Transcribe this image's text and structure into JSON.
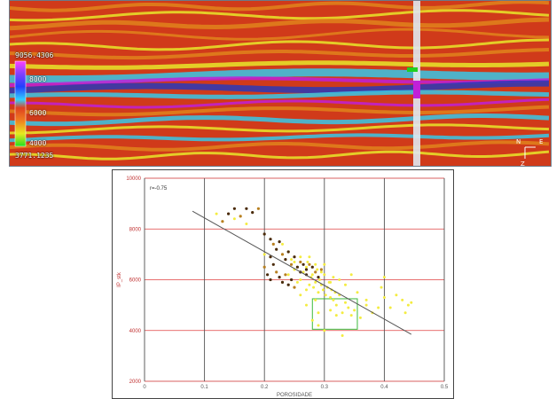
{
  "seismic_section": {
    "colorbar": {
      "max_label": "9056.4306",
      "min_label": "3771.1235",
      "ticks": [
        "8000",
        "6000",
        "4000"
      ],
      "tick_values": [
        8000,
        6000,
        4000
      ],
      "range": [
        3771.1235,
        9056.4306
      ]
    },
    "orientation_axes": {
      "north": "N",
      "east": "E",
      "z": "Z"
    },
    "icons": [
      "well-trace-icon",
      "axis-triad-icon"
    ],
    "colors": {
      "red": "#d03a1a",
      "orange": "#e0841c",
      "yellow": "#e8e82a",
      "cyan": "#38c8e8",
      "blue": "#2a3ab8",
      "magenta": "#c020d8"
    }
  },
  "crossplot": {
    "annotation": "r=-0.75",
    "ylabel": "IP_stk",
    "xlabel": "POROSIDADE",
    "colors": {
      "grid_h": "#e04040",
      "grid_v": "#555555",
      "trend": "#555555",
      "box": "#3cba3c",
      "points_light": "#f4ec40",
      "points_dark": "#4a2a08",
      "points_mid": "#b88020"
    }
  },
  "chart_data": {
    "type": "scatter",
    "title": "",
    "xlabel": "POROSIDADE",
    "ylabel": "IP_stk",
    "xlim": [
      0,
      0.5
    ],
    "ylim": [
      2000,
      10000
    ],
    "x_ticks": [
      "0",
      "0.1",
      "0.2",
      "0.3",
      "0.4",
      "0.5"
    ],
    "y_ticks": [
      "2000",
      "4000",
      "6000",
      "8000",
      "10000"
    ],
    "grid": true,
    "annotations": [
      "r=-0.75"
    ],
    "trend_line": {
      "x": [
        0.08,
        0.445
      ],
      "y": [
        8700,
        3850
      ]
    },
    "highlight_box": {
      "x": [
        0.28,
        0.355
      ],
      "y": [
        4050,
        5250
      ]
    },
    "series": [
      {
        "values": [
          [
            0.12,
            8600
          ],
          [
            0.15,
            8400
          ],
          [
            0.17,
            8200
          ],
          [
            0.2,
            7000
          ],
          [
            0.23,
            7400
          ],
          [
            0.24,
            6200
          ],
          [
            0.245,
            6800
          ],
          [
            0.25,
            6400
          ],
          [
            0.255,
            5900
          ],
          [
            0.26,
            6000
          ],
          [
            0.265,
            6300
          ],
          [
            0.27,
            5600
          ],
          [
            0.272,
            6700
          ],
          [
            0.275,
            5800
          ],
          [
            0.278,
            6100
          ],
          [
            0.28,
            6200
          ],
          [
            0.282,
            5700
          ],
          [
            0.285,
            5900
          ],
          [
            0.288,
            6400
          ],
          [
            0.29,
            5500
          ],
          [
            0.292,
            6000
          ],
          [
            0.295,
            5800
          ],
          [
            0.298,
            5600
          ],
          [
            0.3,
            6200
          ],
          [
            0.302,
            5400
          ],
          [
            0.305,
            5700
          ],
          [
            0.308,
            5900
          ],
          [
            0.31,
            5300
          ],
          [
            0.312,
            5600
          ],
          [
            0.315,
            5200
          ],
          [
            0.318,
            5500
          ],
          [
            0.32,
            5000
          ],
          [
            0.325,
            5400
          ],
          [
            0.33,
            4700
          ],
          [
            0.335,
            5100
          ],
          [
            0.34,
            4900
          ],
          [
            0.345,
            4600
          ],
          [
            0.35,
            4800
          ],
          [
            0.36,
            4500
          ],
          [
            0.37,
            5000
          ],
          [
            0.38,
            4700
          ],
          [
            0.39,
            4900
          ],
          [
            0.4,
            5300
          ],
          [
            0.41,
            4900
          ],
          [
            0.42,
            5400
          ],
          [
            0.43,
            5200
          ],
          [
            0.435,
            4700
          ],
          [
            0.44,
            5000
          ],
          [
            0.445,
            5100
          ],
          [
            0.29,
            4200
          ],
          [
            0.3,
            4000
          ],
          [
            0.28,
            4400
          ],
          [
            0.31,
            4800
          ],
          [
            0.32,
            4600
          ],
          [
            0.33,
            3800
          ],
          [
            0.26,
            6900
          ],
          [
            0.275,
            6900
          ],
          [
            0.285,
            6600
          ],
          [
            0.295,
            6300
          ],
          [
            0.27,
            6500
          ],
          [
            0.25,
            6700
          ],
          [
            0.24,
            7100
          ],
          [
            0.3,
            6600
          ],
          [
            0.315,
            6100
          ],
          [
            0.335,
            5800
          ],
          [
            0.355,
            5500
          ],
          [
            0.37,
            5200
          ],
          [
            0.31,
            5900
          ],
          [
            0.325,
            6000
          ],
          [
            0.285,
            5200
          ],
          [
            0.27,
            5000
          ],
          [
            0.29,
            4700
          ],
          [
            0.26,
            5400
          ],
          [
            0.345,
            6200
          ],
          [
            0.4,
            6100
          ],
          [
            0.395,
            5700
          ]
        ]
      },
      {
        "values": [
          [
            0.13,
            8300
          ],
          [
            0.14,
            8600
          ],
          [
            0.15,
            8800
          ],
          [
            0.16,
            8500
          ],
          [
            0.17,
            8800
          ],
          [
            0.18,
            8650
          ],
          [
            0.19,
            8800
          ],
          [
            0.2,
            7800
          ],
          [
            0.21,
            7600
          ],
          [
            0.215,
            7400
          ],
          [
            0.22,
            7200
          ],
          [
            0.225,
            7500
          ],
          [
            0.23,
            7000
          ],
          [
            0.235,
            6800
          ],
          [
            0.24,
            7100
          ],
          [
            0.245,
            6600
          ],
          [
            0.25,
            6900
          ],
          [
            0.255,
            6500
          ],
          [
            0.26,
            6700
          ],
          [
            0.265,
            6600
          ],
          [
            0.27,
            6400
          ],
          [
            0.275,
            6600
          ],
          [
            0.21,
            6900
          ],
          [
            0.215,
            6600
          ],
          [
            0.22,
            6300
          ],
          [
            0.225,
            6100
          ],
          [
            0.23,
            5900
          ],
          [
            0.235,
            6200
          ],
          [
            0.24,
            5800
          ],
          [
            0.245,
            6000
          ],
          [
            0.25,
            5700
          ],
          [
            0.26,
            6300
          ],
          [
            0.28,
            6500
          ],
          [
            0.285,
            6300
          ],
          [
            0.29,
            6100
          ],
          [
            0.27,
            6200
          ],
          [
            0.2,
            6500
          ],
          [
            0.205,
            6200
          ],
          [
            0.21,
            6000
          ],
          [
            0.295,
            6400
          ]
        ]
      }
    ]
  }
}
